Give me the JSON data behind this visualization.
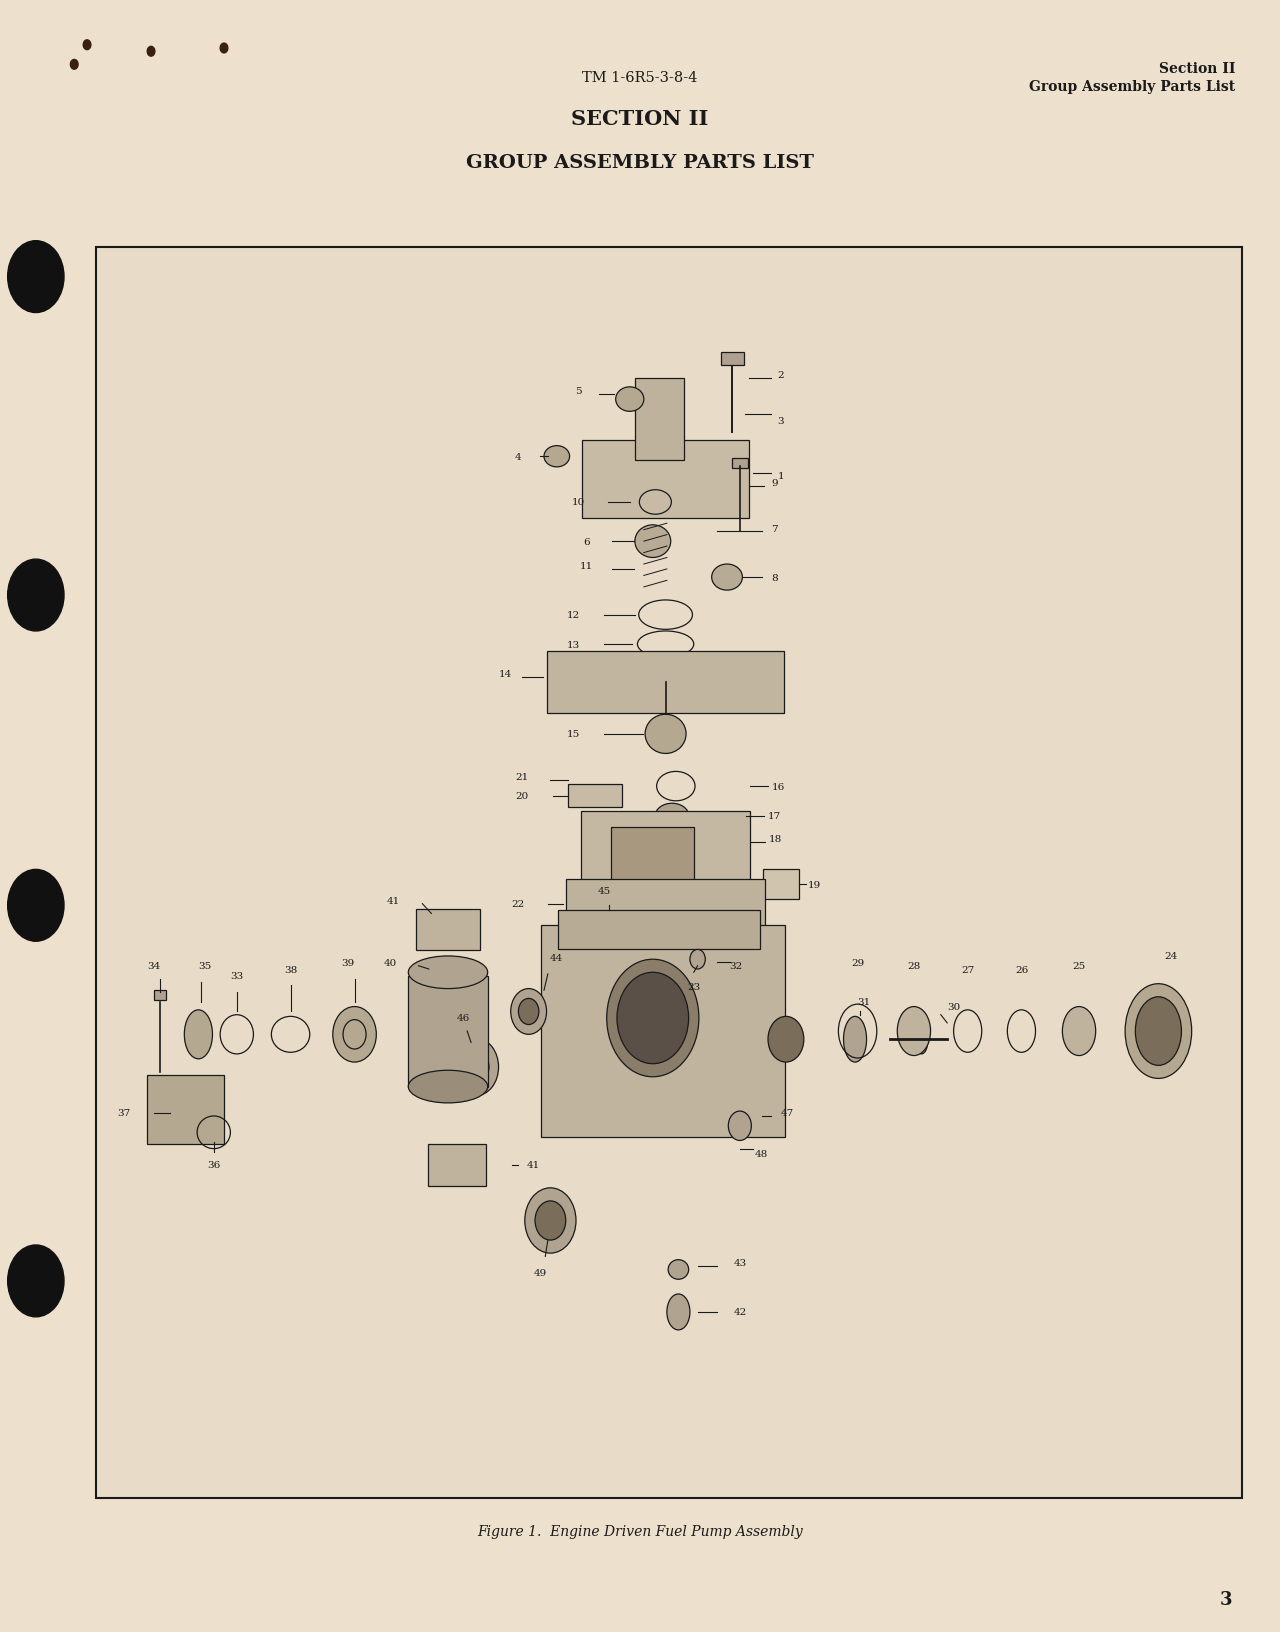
{
  "page_bg": "#ede0cc",
  "box_bg": "#e8dbc8",
  "header_tm": "TM 1-6R5-3-8-4",
  "header_section": "Section II",
  "header_subsection": "Group Assembly Parts List",
  "title_section": "SECTION II",
  "title_main": "GROUP ASSEMBLY PARTS LIST",
  "figure_caption": "Figure 1.  Engine Driven Fuel Pump Assembly",
  "page_number": "3",
  "part_color": "#c8bba5",
  "part_dark": "#b0a390",
  "part_light": "#d5c9b5",
  "edge_color": "#1a1a1a",
  "text_color": "#1a1a1a"
}
